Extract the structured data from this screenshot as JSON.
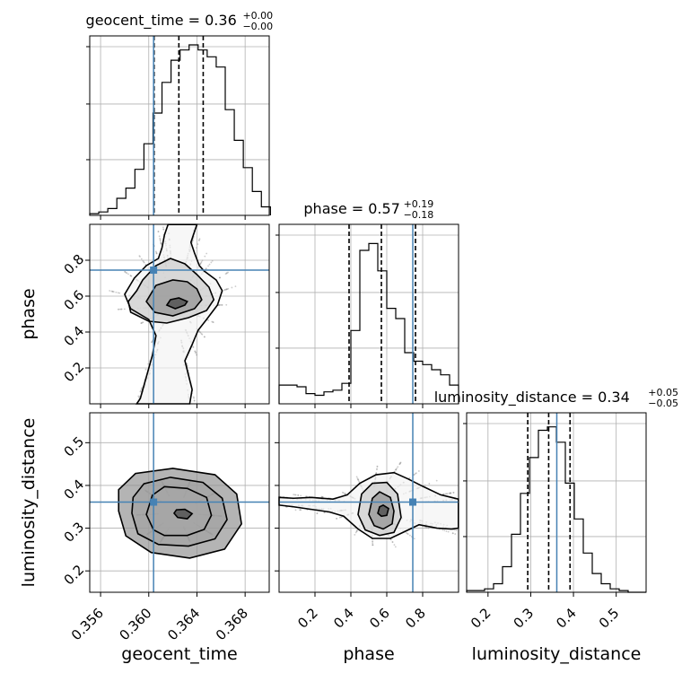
{
  "chart_data": {
    "type": "corner",
    "parameters": [
      "geocent_time",
      "phase",
      "luminosity_distance"
    ],
    "ranges": {
      "geocent_time": [
        0.3551,
        0.37
      ],
      "phase": [
        0.0,
        1.0
      ],
      "luminosity_distance": [
        0.15,
        0.57
      ]
    },
    "truths": {
      "geocent_time": 0.3604,
      "phase": 0.745,
      "luminosity_distance": 0.361
    },
    "colors": {
      "truth": "#4682b4",
      "hist": "#000000",
      "grid": "#b0b0b0",
      "contour": "#000000"
    },
    "grid": true,
    "titles": [
      {
        "param": "geocent_time",
        "name": "geocent_time",
        "value": "0.36",
        "plus": "+0.00",
        "minus": "−0.00"
      },
      {
        "param": "phase",
        "name": "phase",
        "value": "0.57",
        "plus": "+0.19",
        "minus": "−0.18"
      },
      {
        "param": "luminosity_distance",
        "name": "luminosity_distance",
        "value": "0.34",
        "plus": "+0.05",
        "minus": "−0.05"
      }
    ],
    "xlabels": [
      "geocent_time",
      "phase",
      "luminosity_distance"
    ],
    "ylabels": {
      "row1": "phase",
      "row2": "luminosity_distance"
    },
    "ticks": {
      "geocent_time": [
        "0.356",
        "0.360",
        "0.364",
        "0.368"
      ],
      "phase": [
        "0.2",
        "0.4",
        "0.6",
        "0.8"
      ],
      "luminosity_distance": [
        "0.2",
        "0.3",
        "0.4",
        "0.5"
      ]
    },
    "hist_geocent_time": {
      "edges_start": 0.3551,
      "bin_width": 0.00075,
      "counts": [
        0.01,
        0.02,
        0.04,
        0.1,
        0.16,
        0.27,
        0.42,
        0.6,
        0.78,
        0.91,
        0.97,
        1.0,
        0.97,
        0.93,
        0.87,
        0.62,
        0.44,
        0.28,
        0.14,
        0.05
      ],
      "quantiles": [
        0.36044,
        0.3625,
        0.36452
      ]
    },
    "hist_phase": {
      "edges_start": 0.0,
      "bin_width": 0.05,
      "counts": [
        0.11,
        0.11,
        0.1,
        0.06,
        0.05,
        0.07,
        0.08,
        0.12,
        0.43,
        0.9,
        0.94,
        0.78,
        0.56,
        0.5,
        0.3,
        0.25,
        0.23,
        0.2,
        0.17,
        0.11
      ],
      "quantiles": [
        0.39,
        0.57,
        0.76
      ]
    },
    "hist_luminosity_distance": {
      "edges_start": 0.15,
      "bin_width": 0.021,
      "counts": [
        0.01,
        0.01,
        0.02,
        0.05,
        0.15,
        0.34,
        0.58,
        0.79,
        0.95,
        0.97,
        0.88,
        0.64,
        0.43,
        0.23,
        0.11,
        0.05,
        0.02,
        0.01,
        0.0,
        0.0
      ],
      "quantiles": [
        0.293,
        0.342,
        0.392
      ]
    },
    "contours": {
      "phase_vs_geocent_time": [
        [
          [
            0.3616,
            0.999
          ],
          [
            0.3613,
            0.94
          ],
          [
            0.3611,
            0.87
          ],
          [
            0.3608,
            0.81
          ],
          [
            0.3598,
            0.77
          ],
          [
            0.3588,
            0.7
          ],
          [
            0.358,
            0.61
          ],
          [
            0.3585,
            0.53
          ],
          [
            0.36,
            0.47
          ],
          [
            0.3606,
            0.38
          ],
          [
            0.3603,
            0.27
          ],
          [
            0.3598,
            0.15
          ],
          [
            0.3593,
            0.03
          ],
          [
            0.359,
            0.0
          ],
          [
            0.3634,
            0.0
          ],
          [
            0.3636,
            0.08
          ],
          [
            0.3633,
            0.16
          ],
          [
            0.363,
            0.24
          ],
          [
            0.3636,
            0.33
          ],
          [
            0.3641,
            0.41
          ],
          [
            0.3648,
            0.47
          ],
          [
            0.3657,
            0.55
          ],
          [
            0.3661,
            0.63
          ],
          [
            0.3656,
            0.69
          ],
          [
            0.3646,
            0.74
          ],
          [
            0.3642,
            0.77
          ],
          [
            0.3638,
            0.84
          ],
          [
            0.3635,
            0.9
          ],
          [
            0.3638,
            0.96
          ],
          [
            0.364,
            0.999
          ]
        ],
        [
          [
            0.359,
            0.63
          ],
          [
            0.3583,
            0.57
          ],
          [
            0.3585,
            0.51
          ],
          [
            0.36,
            0.46
          ],
          [
            0.3615,
            0.45
          ],
          [
            0.3633,
            0.48
          ],
          [
            0.3648,
            0.52
          ],
          [
            0.3654,
            0.58
          ],
          [
            0.365,
            0.65
          ],
          [
            0.364,
            0.72
          ],
          [
            0.363,
            0.78
          ],
          [
            0.3618,
            0.81
          ],
          [
            0.3606,
            0.77
          ],
          [
            0.3595,
            0.69
          ]
        ],
        [
          [
            0.3598,
            0.57
          ],
          [
            0.3605,
            0.51
          ],
          [
            0.362,
            0.49
          ],
          [
            0.3638,
            0.53
          ],
          [
            0.3644,
            0.58
          ],
          [
            0.364,
            0.64
          ],
          [
            0.3632,
            0.68
          ],
          [
            0.362,
            0.69
          ],
          [
            0.3606,
            0.66
          ]
        ],
        [
          [
            0.3615,
            0.55
          ],
          [
            0.3622,
            0.53
          ],
          [
            0.363,
            0.55
          ],
          [
            0.3632,
            0.57
          ],
          [
            0.3625,
            0.59
          ],
          [
            0.3618,
            0.58
          ]
        ]
      ],
      "luminosity_distance_vs_geocent_time": [
        [
          [
            0.3598,
            0.332
          ],
          [
            0.3604,
            0.296
          ],
          [
            0.3613,
            0.283
          ],
          [
            0.3632,
            0.283
          ],
          [
            0.3646,
            0.297
          ],
          [
            0.3652,
            0.33
          ],
          [
            0.3648,
            0.372
          ],
          [
            0.3632,
            0.393
          ],
          [
            0.3613,
            0.397
          ],
          [
            0.3603,
            0.377
          ]
        ],
        [
          [
            0.3586,
            0.335
          ],
          [
            0.3591,
            0.287
          ],
          [
            0.3608,
            0.262
          ],
          [
            0.3633,
            0.258
          ],
          [
            0.3655,
            0.275
          ],
          [
            0.3665,
            0.32
          ],
          [
            0.3661,
            0.37
          ],
          [
            0.3645,
            0.407
          ],
          [
            0.3618,
            0.419
          ],
          [
            0.3596,
            0.404
          ],
          [
            0.3587,
            0.372
          ]
        ],
        [
          [
            0.3575,
            0.34
          ],
          [
            0.3581,
            0.282
          ],
          [
            0.3602,
            0.243
          ],
          [
            0.3634,
            0.23
          ],
          [
            0.3663,
            0.251
          ],
          [
            0.3677,
            0.31
          ],
          [
            0.3673,
            0.38
          ],
          [
            0.3655,
            0.425
          ],
          [
            0.362,
            0.44
          ],
          [
            0.3589,
            0.428
          ],
          [
            0.3575,
            0.39
          ]
        ],
        [
          [
            0.3621,
            0.335
          ],
          [
            0.3624,
            0.325
          ],
          [
            0.3632,
            0.322
          ],
          [
            0.3636,
            0.334
          ],
          [
            0.363,
            0.344
          ],
          [
            0.3623,
            0.343
          ]
        ]
      ],
      "luminosity_distance_vs_phase": [
        [
          [
            0.0,
            0.354
          ],
          [
            0.08,
            0.35
          ],
          [
            0.18,
            0.344
          ],
          [
            0.28,
            0.338
          ],
          [
            0.36,
            0.328
          ],
          [
            0.44,
            0.298
          ],
          [
            0.52,
            0.276
          ],
          [
            0.62,
            0.276
          ],
          [
            0.7,
            0.292
          ],
          [
            0.78,
            0.308
          ],
          [
            0.88,
            0.3
          ],
          [
            0.96,
            0.298
          ],
          [
            0.999,
            0.3
          ],
          [
            0.999,
            0.368
          ],
          [
            0.9,
            0.378
          ],
          [
            0.8,
            0.398
          ],
          [
            0.72,
            0.415
          ],
          [
            0.64,
            0.43
          ],
          [
            0.54,
            0.425
          ],
          [
            0.45,
            0.405
          ],
          [
            0.38,
            0.378
          ],
          [
            0.3,
            0.368
          ],
          [
            0.18,
            0.372
          ],
          [
            0.08,
            0.37
          ],
          [
            0.0,
            0.372
          ]
        ],
        [
          [
            0.44,
            0.332
          ],
          [
            0.48,
            0.296
          ],
          [
            0.56,
            0.283
          ],
          [
            0.64,
            0.29
          ],
          [
            0.68,
            0.325
          ],
          [
            0.66,
            0.38
          ],
          [
            0.6,
            0.407
          ],
          [
            0.52,
            0.405
          ],
          [
            0.46,
            0.38
          ]
        ],
        [
          [
            0.5,
            0.332
          ],
          [
            0.53,
            0.306
          ],
          [
            0.58,
            0.298
          ],
          [
            0.63,
            0.31
          ],
          [
            0.64,
            0.34
          ],
          [
            0.62,
            0.372
          ],
          [
            0.56,
            0.385
          ],
          [
            0.52,
            0.37
          ]
        ],
        [
          [
            0.55,
            0.335
          ],
          [
            0.57,
            0.328
          ],
          [
            0.6,
            0.33
          ],
          [
            0.61,
            0.346
          ],
          [
            0.58,
            0.354
          ],
          [
            0.56,
            0.35
          ]
        ]
      ]
    }
  }
}
